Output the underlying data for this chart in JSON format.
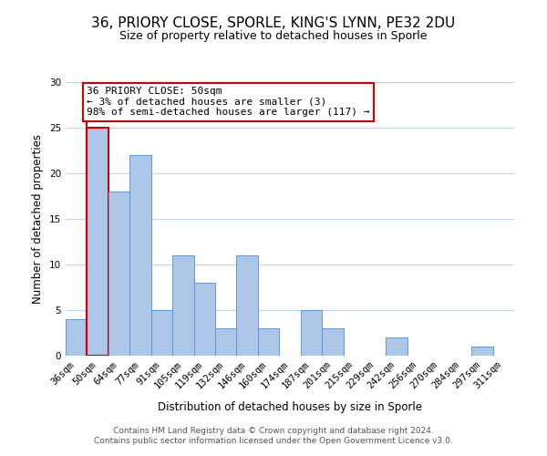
{
  "title": "36, PRIORY CLOSE, SPORLE, KING'S LYNN, PE32 2DU",
  "subtitle": "Size of property relative to detached houses in Sporle",
  "xlabel": "Distribution of detached houses by size in Sporle",
  "ylabel": "Number of detached properties",
  "bin_labels": [
    "36sqm",
    "50sqm",
    "64sqm",
    "77sqm",
    "91sqm",
    "105sqm",
    "119sqm",
    "132sqm",
    "146sqm",
    "160sqm",
    "174sqm",
    "187sqm",
    "201sqm",
    "215sqm",
    "229sqm",
    "242sqm",
    "256sqm",
    "270sqm",
    "284sqm",
    "297sqm",
    "311sqm"
  ],
  "bar_values": [
    4,
    25,
    18,
    22,
    5,
    11,
    8,
    3,
    11,
    3,
    0,
    5,
    3,
    0,
    0,
    2,
    0,
    0,
    0,
    1,
    0
  ],
  "bar_color": "#aec6e8",
  "bar_edge_color": "#5b9bd5",
  "highlight_bar_index": 1,
  "highlight_edge_color": "#cc0000",
  "highlight_line_color": "#cc0000",
  "annotation_box_text": "36 PRIORY CLOSE: 50sqm\n← 3% of detached houses are smaller (3)\n98% of semi-detached houses are larger (117) →",
  "annotation_box_edge_color": "#cc0000",
  "ylim": [
    0,
    30
  ],
  "yticks": [
    0,
    5,
    10,
    15,
    20,
    25,
    30
  ],
  "footer_line1": "Contains HM Land Registry data © Crown copyright and database right 2024.",
  "footer_line2": "Contains public sector information licensed under the Open Government Licence v3.0.",
  "background_color": "#ffffff",
  "grid_color": "#c0d4e8",
  "title_fontsize": 11,
  "subtitle_fontsize": 9,
  "axis_label_fontsize": 8.5,
  "ylabel_fontsize": 8.5,
  "tick_fontsize": 7.5,
  "annotation_fontsize": 8,
  "footer_fontsize": 6.5
}
